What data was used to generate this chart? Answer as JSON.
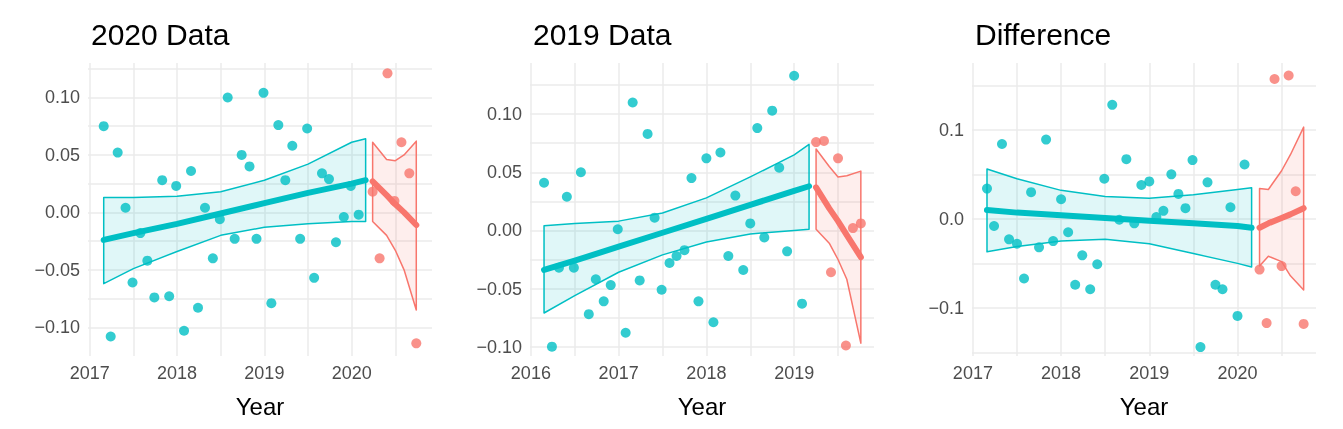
{
  "chart_data": [
    {
      "type": "scatter",
      "title": "2020 Data",
      "xlabel": "Year",
      "grid": true,
      "xlim": [
        2016.98,
        2020.92
      ],
      "xticks": [
        2017,
        {
          "value": 2017.5,
          "label": null
        },
        2018,
        {
          "value": 2018.5,
          "label": null
        },
        2019,
        {
          "value": 2019.5,
          "label": null
        },
        2020,
        {
          "value": 2020.5,
          "label": null
        }
      ],
      "ylim": [
        -0.125,
        0.13
      ],
      "yticks": [
        {
          "value": -0.1,
          "label": "−0.10"
        },
        {
          "value": -0.075,
          "label": null
        },
        {
          "value": -0.05,
          "label": "−0.05"
        },
        {
          "value": -0.025,
          "label": null
        },
        {
          "value": 0,
          "label": "0.00"
        },
        {
          "value": 0.025,
          "label": null
        },
        {
          "value": 0.05,
          "label": "0.05"
        },
        {
          "value": 0.075,
          "label": null
        },
        {
          "value": 0.1,
          "label": "0.10"
        },
        {
          "value": 0.125,
          "label": null
        }
      ],
      "series": [
        {
          "type": "scatter",
          "marker": "circle",
          "color": "#00bfc4",
          "x": [
            2017.16,
            2017.24,
            2017.32,
            2017.41,
            2017.49,
            2017.58,
            2017.66,
            2017.74,
            2017.83,
            2017.91,
            2017.99,
            2018.08,
            2018.16,
            2018.24,
            2018.32,
            2018.41,
            2018.49,
            2018.58,
            2018.66,
            2018.74,
            2018.83,
            2018.91,
            2018.99,
            2019.08,
            2019.16,
            2019.24,
            2019.32,
            2019.41,
            2019.49,
            2019.57,
            2019.66,
            2019.74,
            2019.82,
            2019.91,
            2019.99,
            2020.08
          ],
          "values": [
            0.075,
            -0.108,
            0.052,
            0.004,
            -0.061,
            -0.018,
            -0.042,
            -0.074,
            0.028,
            -0.073,
            0.023,
            -0.103,
            0.036,
            -0.083,
            0.004,
            -0.04,
            -0.006,
            0.1,
            -0.023,
            0.05,
            0.04,
            -0.023,
            0.104,
            -0.079,
            0.076,
            0.028,
            0.058,
            -0.023,
            0.073,
            -0.057,
            0.034,
            0.029,
            -0.026,
            -0.004,
            0.023,
            -0.002
          ]
        },
        {
          "type": "line",
          "marker": "none",
          "color": "#00bfc4",
          "x": [
            2017.16,
            2017.5,
            2018,
            2018.5,
            2019,
            2019.5,
            2020,
            2020.16
          ],
          "values": [
            -0.024,
            -0.018,
            -0.01,
            -0.001,
            0.008,
            0.017,
            0.025,
            0.028
          ],
          "lower": [
            -0.062,
            -0.049,
            -0.034,
            -0.02,
            -0.013,
            -0.01,
            -0.008,
            -0.008
          ],
          "upper": [
            0.013,
            0.013,
            0.014,
            0.018,
            0.028,
            0.042,
            0.061,
            0.064
          ]
        },
        {
          "type": "scatter",
          "marker": "circle",
          "color": "#f8766d",
          "x": [
            2020.24,
            2020.32,
            2020.41,
            2020.49,
            2020.57,
            2020.66,
            2020.74
          ],
          "values": [
            0.018,
            -0.04,
            0.121,
            0.01,
            0.061,
            0.034,
            -0.114
          ]
        },
        {
          "type": "line",
          "marker": "none",
          "color": "#f8766d",
          "x": [
            2020.24,
            2020.4,
            2020.5,
            2020.6,
            2020.74
          ],
          "values": [
            0.027,
            0.015,
            0.007,
            0,
            -0.011
          ],
          "lower": [
            -0.008,
            -0.02,
            -0.033,
            -0.05,
            -0.085
          ],
          "upper": [
            0.061,
            0.046,
            0.045,
            0.05,
            0.062
          ]
        }
      ]
    },
    {
      "type": "scatter",
      "title": "2019 Data",
      "xlabel": "Year",
      "grid": true,
      "xlim": [
        2015.99,
        2019.91
      ],
      "xticks": [
        2016,
        {
          "value": 2016.5,
          "label": null
        },
        2017,
        {
          "value": 2017.5,
          "label": null
        },
        2018,
        {
          "value": 2018.5,
          "label": null
        },
        2019,
        {
          "value": 2019.5,
          "label": null
        }
      ],
      "ylim": [
        -0.108,
        0.144
      ],
      "yticks": [
        {
          "value": -0.1,
          "label": "−0.10"
        },
        {
          "value": -0.075,
          "label": null
        },
        {
          "value": -0.05,
          "label": "−0.05"
        },
        {
          "value": -0.025,
          "label": null
        },
        {
          "value": 0,
          "label": "0.00"
        },
        {
          "value": 0.025,
          "label": null
        },
        {
          "value": 0.05,
          "label": "0.05"
        },
        {
          "value": 0.075,
          "label": null
        },
        {
          "value": 0.1,
          "label": "0.10"
        },
        {
          "value": 0.125,
          "label": null
        }
      ],
      "series": [
        {
          "type": "scatter",
          "marker": "circle",
          "color": "#00bfc4",
          "x": [
            2016.15,
            2016.24,
            2016.32,
            2016.41,
            2016.49,
            2016.57,
            2016.66,
            2016.74,
            2016.83,
            2016.91,
            2016.99,
            2017.08,
            2017.16,
            2017.24,
            2017.33,
            2017.41,
            2017.49,
            2017.58,
            2017.66,
            2017.75,
            2017.83,
            2017.91,
            2018,
            2018.08,
            2018.16,
            2018.25,
            2018.33,
            2018.42,
            2018.5,
            2018.58,
            2018.66,
            2018.75,
            2018.83,
            2018.92,
            2019,
            2019.09
          ],
          "values": [
            0.041,
            -0.1,
            -0.032,
            0.029,
            -0.032,
            0.05,
            -0.072,
            -0.042,
            -0.061,
            -0.047,
            0.001,
            -0.088,
            0.11,
            -0.043,
            0.083,
            0.011,
            -0.051,
            -0.028,
            -0.022,
            -0.017,
            0.045,
            -0.061,
            0.062,
            -0.079,
            0.067,
            -0.022,
            0.03,
            -0.034,
            0.006,
            0.088,
            -0.006,
            0.103,
            0.054,
            -0.018,
            0.133,
            -0.063
          ]
        },
        {
          "type": "line",
          "marker": "none",
          "color": "#00bfc4",
          "x": [
            2016.15,
            2016.5,
            2017,
            2017.5,
            2018,
            2018.5,
            2019,
            2019.17
          ],
          "values": [
            -0.034,
            -0.026,
            -0.014,
            -0.002,
            0.01,
            0.022,
            0.034,
            0.038
          ],
          "lower": [
            -0.071,
            -0.056,
            -0.036,
            -0.021,
            -0.01,
            -0.003,
            0,
            0.001
          ],
          "upper": [
            0.004,
            0.006,
            0.008,
            0.015,
            0.028,
            0.046,
            0.065,
            0.074
          ]
        },
        {
          "type": "scatter",
          "marker": "circle",
          "color": "#f8766d",
          "x": [
            2019.25,
            2019.34,
            2019.42,
            2019.5,
            2019.59,
            2019.67,
            2019.76
          ],
          "values": [
            0.076,
            0.077,
            -0.036,
            0.062,
            -0.099,
            0.002,
            0.006
          ]
        },
        {
          "type": "line",
          "marker": "none",
          "color": "#f8766d",
          "x": [
            2019.25,
            2019.4,
            2019.5,
            2019.6,
            2019.76
          ],
          "values": [
            0.037,
            0.019,
            0.008,
            -0.004,
            -0.023
          ],
          "lower": [
            0.001,
            -0.011,
            -0.025,
            -0.042,
            -0.097
          ],
          "upper": [
            0.07,
            0.055,
            0.046,
            0.047,
            0.051
          ]
        }
      ]
    },
    {
      "type": "scatter",
      "title": "Difference",
      "xlabel": "Year",
      "grid": true,
      "xlim": [
        2016.99,
        2020.89
      ],
      "xticks": [
        2017,
        {
          "value": 2017.5,
          "label": null
        },
        2018,
        {
          "value": 2018.5,
          "label": null
        },
        2019,
        {
          "value": 2019.5,
          "label": null
        },
        2020,
        {
          "value": 2020.5,
          "label": null
        }
      ],
      "ylim": [
        -0.154,
        0.175
      ],
      "yticks": [
        {
          "value": -0.15,
          "label": null
        },
        {
          "value": -0.1,
          "label": "−0.1"
        },
        {
          "value": -0.05,
          "label": null
        },
        {
          "value": 0,
          "label": "0.0"
        },
        {
          "value": 0.05,
          "label": null
        },
        {
          "value": 0.1,
          "label": "0.1"
        },
        {
          "value": 0.15,
          "label": null
        }
      ],
      "series": [
        {
          "type": "scatter",
          "marker": "circle",
          "color": "#00bfc4",
          "x": [
            2017.16,
            2017.24,
            2017.33,
            2017.41,
            2017.5,
            2017.58,
            2017.66,
            2017.75,
            2017.83,
            2017.91,
            2018,
            2018.08,
            2018.16,
            2018.24,
            2018.33,
            2018.41,
            2018.49,
            2018.58,
            2018.66,
            2018.74,
            2018.83,
            2018.91,
            2019,
            2019.08,
            2019.16,
            2019.25,
            2019.33,
            2019.41,
            2019.49,
            2019.58,
            2019.66,
            2019.75,
            2019.83,
            2019.92,
            2020,
            2020.08
          ],
          "values": [
            0.034,
            -0.008,
            0.084,
            -0.023,
            -0.028,
            -0.067,
            0.03,
            -0.032,
            0.089,
            -0.025,
            0.022,
            -0.015,
            -0.074,
            -0.041,
            -0.079,
            -0.051,
            0.045,
            0.128,
            -0.001,
            0.067,
            -0.005,
            0.038,
            0.042,
            0.002,
            0.009,
            0.05,
            0.028,
            0.012,
            0.066,
            -0.144,
            0.041,
            -0.074,
            -0.079,
            0.013,
            -0.109,
            0.061
          ]
        },
        {
          "type": "line",
          "marker": "none",
          "color": "#00bfc4",
          "x": [
            2017.16,
            2017.5,
            2018,
            2018.5,
            2019,
            2019.5,
            2020,
            2020.16
          ],
          "values": [
            0.01,
            0.007,
            0.004,
            0.001,
            -0.002,
            -0.005,
            -0.008,
            -0.01
          ],
          "lower": [
            -0.037,
            -0.031,
            -0.025,
            -0.023,
            -0.028,
            -0.039,
            -0.05,
            -0.054
          ],
          "upper": [
            0.056,
            0.045,
            0.032,
            0.025,
            0.023,
            0.027,
            0.033,
            0.035
          ]
        },
        {
          "type": "scatter",
          "marker": "circle",
          "color": "#f8766d",
          "x": [
            2020.25,
            2020.33,
            2020.42,
            2020.5,
            2020.58,
            2020.66,
            2020.75
          ],
          "values": [
            -0.057,
            -0.117,
            0.157,
            -0.053,
            0.161,
            0.031,
            -0.118
          ]
        },
        {
          "type": "line",
          "marker": "none",
          "color": "#f8766d",
          "x": [
            2020.25,
            2020.35,
            2020.5,
            2020.6,
            2020.75
          ],
          "values": [
            -0.01,
            -0.005,
            0.001,
            0.005,
            0.012
          ],
          "lower": [
            -0.053,
            -0.042,
            -0.048,
            -0.064,
            -0.08
          ],
          "upper": [
            0.034,
            0.033,
            0.054,
            0.072,
            0.103
          ]
        }
      ]
    }
  ]
}
